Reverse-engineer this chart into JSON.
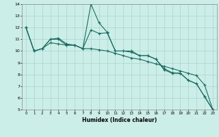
{
  "title": "",
  "xlabel": "Humidex (Indice chaleur)",
  "ylabel": "",
  "xlim": [
    -0.5,
    23.5
  ],
  "ylim": [
    5,
    14
  ],
  "xticks": [
    0,
    1,
    2,
    3,
    4,
    5,
    6,
    7,
    8,
    9,
    10,
    11,
    12,
    13,
    14,
    15,
    16,
    17,
    18,
    19,
    20,
    21,
    22,
    23
  ],
  "yticks": [
    5,
    6,
    7,
    8,
    9,
    10,
    11,
    12,
    13,
    14
  ],
  "background_color": "#cceee8",
  "grid_color": "#aad4cc",
  "line_color": "#1a6b60",
  "series1_x": [
    0,
    1,
    2,
    3,
    4,
    5,
    6,
    7,
    8,
    9,
    10,
    11,
    12,
    13,
    14,
    15,
    16,
    17,
    18,
    19,
    20,
    21,
    22,
    23
  ],
  "series1_y": [
    12,
    10,
    10.2,
    11,
    11,
    10.5,
    10.5,
    10.2,
    14.0,
    12.4,
    11.6,
    10.0,
    10.0,
    10.0,
    9.6,
    9.6,
    9.3,
    8.4,
    8.1,
    8.1,
    7.5,
    7.2,
    6.1,
    5.0
  ],
  "series2_x": [
    0,
    1,
    2,
    3,
    4,
    5,
    6,
    7,
    8,
    9,
    10,
    11,
    12,
    13,
    14,
    15,
    16,
    17,
    18,
    19,
    20,
    21,
    22,
    23
  ],
  "series2_y": [
    12,
    10,
    10.2,
    11,
    11.1,
    10.6,
    10.5,
    10.2,
    11.8,
    11.5,
    11.55,
    10.0,
    10.0,
    9.9,
    9.6,
    9.6,
    9.3,
    8.5,
    8.15,
    8.1,
    7.5,
    7.2,
    6.1,
    5.0
  ],
  "series3_x": [
    0,
    1,
    2,
    3,
    4,
    5,
    6,
    7,
    8,
    9,
    10,
    11,
    12,
    13,
    14,
    15,
    16,
    17,
    18,
    19,
    20,
    21,
    22,
    23
  ],
  "series3_y": [
    12,
    10,
    10.2,
    10.7,
    10.6,
    10.5,
    10.5,
    10.2,
    10.2,
    10.1,
    10.0,
    9.8,
    9.6,
    9.4,
    9.3,
    9.1,
    8.9,
    8.7,
    8.5,
    8.3,
    8.1,
    7.9,
    7.1,
    5.0
  ],
  "figwidth": 3.2,
  "figheight": 2.0,
  "dpi": 100
}
